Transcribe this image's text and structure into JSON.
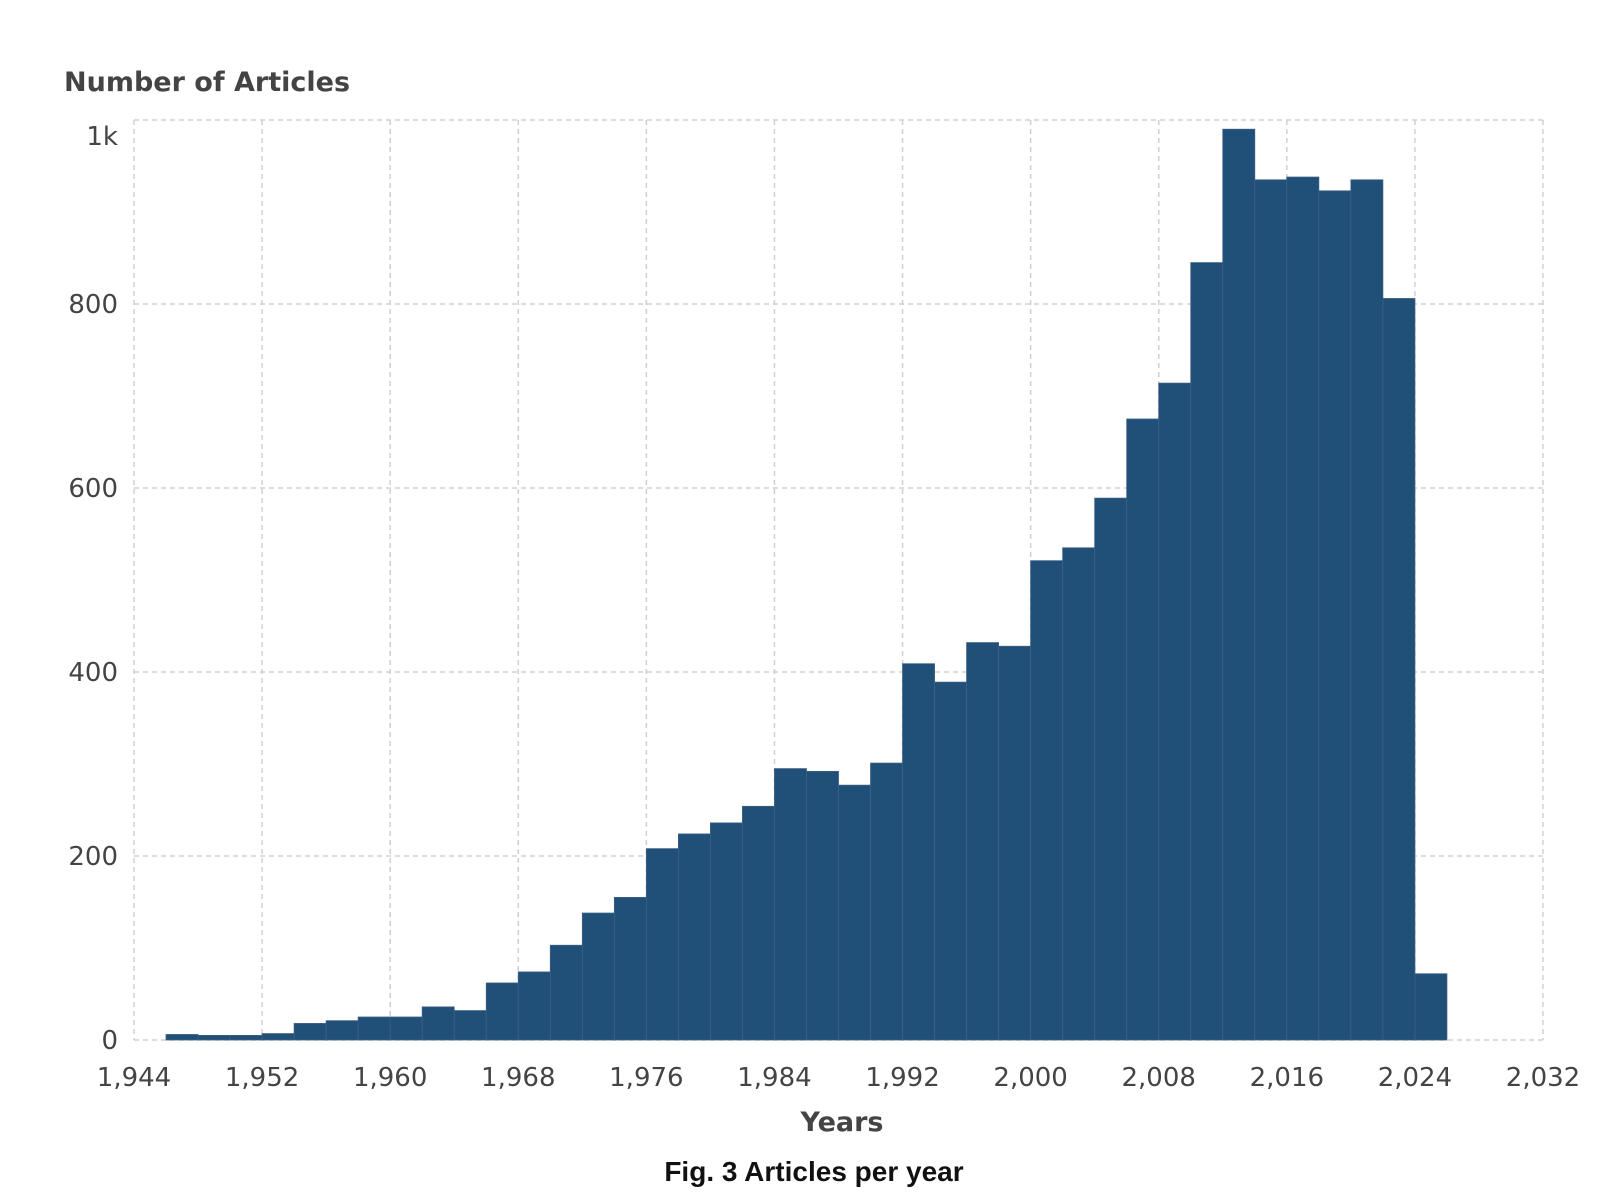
{
  "caption": "Fig. 3 Articles per year",
  "colors": {
    "bar": "#204f78",
    "grid": "#d0d0d0",
    "text": "#444444"
  },
  "chart_data": {
    "type": "bar",
    "ylabel": "Number of Articles",
    "xlabel": "Years",
    "xlim": [
      1944,
      2032
    ],
    "ylim": [
      0,
      1000
    ],
    "grid": true,
    "x_ticks": [
      {
        "value": 1944,
        "label": "1,944"
      },
      {
        "value": 1952,
        "label": "1,952"
      },
      {
        "value": 1960,
        "label": "1,960"
      },
      {
        "value": 1968,
        "label": "1,968"
      },
      {
        "value": 1976,
        "label": "1,976"
      },
      {
        "value": 1984,
        "label": "1,984"
      },
      {
        "value": 1992,
        "label": "1,992"
      },
      {
        "value": 2000,
        "label": "2,000"
      },
      {
        "value": 2008,
        "label": "2,008"
      },
      {
        "value": 2016,
        "label": "2,016"
      },
      {
        "value": 2024,
        "label": "2,024"
      },
      {
        "value": 2032,
        "label": "2,032"
      }
    ],
    "y_ticks": [
      {
        "value": 0,
        "label": "0"
      },
      {
        "value": 200,
        "label": "200"
      },
      {
        "value": 400,
        "label": "400"
      },
      {
        "value": 600,
        "label": "600"
      },
      {
        "value": 800,
        "label": "800"
      },
      {
        "value": 1000,
        "label": "1k"
      }
    ],
    "bin_width": 2,
    "bins": [
      {
        "start": 1946,
        "value": 6
      },
      {
        "start": 1948,
        "value": 5
      },
      {
        "start": 1950,
        "value": 5
      },
      {
        "start": 1952,
        "value": 7
      },
      {
        "start": 1954,
        "value": 18
      },
      {
        "start": 1956,
        "value": 21
      },
      {
        "start": 1958,
        "value": 25
      },
      {
        "start": 1960,
        "value": 25
      },
      {
        "start": 1962,
        "value": 36
      },
      {
        "start": 1964,
        "value": 32
      },
      {
        "start": 1966,
        "value": 62
      },
      {
        "start": 1968,
        "value": 74
      },
      {
        "start": 1970,
        "value": 103
      },
      {
        "start": 1972,
        "value": 138
      },
      {
        "start": 1974,
        "value": 155
      },
      {
        "start": 1976,
        "value": 208
      },
      {
        "start": 1978,
        "value": 224
      },
      {
        "start": 1980,
        "value": 236
      },
      {
        "start": 1982,
        "value": 254
      },
      {
        "start": 1984,
        "value": 295
      },
      {
        "start": 1986,
        "value": 292
      },
      {
        "start": 1988,
        "value": 277
      },
      {
        "start": 1990,
        "value": 301
      },
      {
        "start": 1992,
        "value": 409
      },
      {
        "start": 1994,
        "value": 389
      },
      {
        "start": 1996,
        "value": 432
      },
      {
        "start": 1998,
        "value": 428
      },
      {
        "start": 2000,
        "value": 521
      },
      {
        "start": 2002,
        "value": 535
      },
      {
        "start": 2004,
        "value": 589
      },
      {
        "start": 2006,
        "value": 675
      },
      {
        "start": 2008,
        "value": 714
      },
      {
        "start": 2010,
        "value": 845
      },
      {
        "start": 2012,
        "value": 990
      },
      {
        "start": 2014,
        "value": 935
      },
      {
        "start": 2016,
        "value": 938
      },
      {
        "start": 2018,
        "value": 923
      },
      {
        "start": 2020,
        "value": 935
      },
      {
        "start": 2022,
        "value": 806
      },
      {
        "start": 2024,
        "value": 72
      }
    ]
  }
}
